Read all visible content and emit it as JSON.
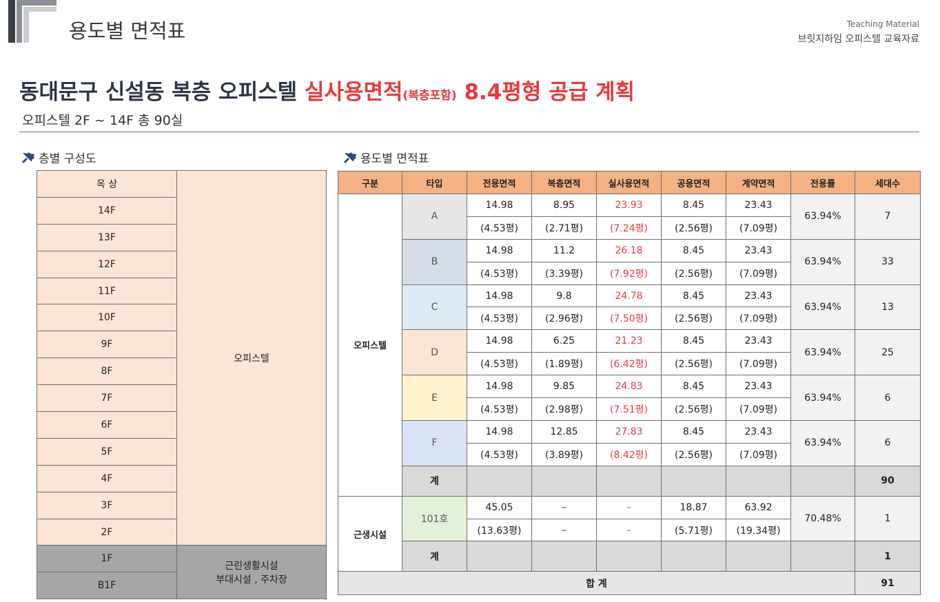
{
  "header": {
    "title": "용도별 면적표",
    "label_en": "Teaching Material",
    "label_ko": "브릿지하임 오피스텔 교육자료"
  },
  "headline": {
    "part1": "동대문구 신설동 복층 오피스텔 ",
    "highlight": "실사용면적",
    "small": "(복층포함)",
    "part2": " 8.4평형 공급 계획"
  },
  "subtitle": "오피스텔 2F ~ 14F 총 90실",
  "floor_section": {
    "title": "층별 구성도",
    "floors": [
      "옥 상",
      "14F",
      "13F",
      "12F",
      "11F",
      "10F",
      "9F",
      "8F",
      "7F",
      "6F",
      "5F",
      "4F",
      "3F",
      "2F",
      "1F",
      "B1F"
    ],
    "upper_use": "오피스텔",
    "lower_use": [
      "근린생활시설",
      "부대시설 , 주차장"
    ]
  },
  "area_section": {
    "title": "용도별 면적표",
    "columns": [
      "구분",
      "타입",
      "전용면적",
      "복층면적",
      "실사용면적",
      "공용면적",
      "계약면적",
      "전용률",
      "세대수"
    ],
    "office": {
      "label": "오피스텔",
      "types": [
        {
          "name": "A",
          "areas": [
            14.98,
            8.95,
            23.93,
            8.45,
            23.43
          ],
          "pyeong": [
            "(4.53평)",
            "(2.71평)",
            "(7.24평)",
            "(2.56평)",
            "(7.09평)"
          ],
          "ratio": "63.94%",
          "units": 7
        },
        {
          "name": "B",
          "areas": [
            14.98,
            11.2,
            26.18,
            8.45,
            23.43
          ],
          "pyeong": [
            "(4.53평)",
            "(3.39평)",
            "(7.92평)",
            "(2.56평)",
            "(7.09평)"
          ],
          "ratio": "63.94%",
          "units": 33
        },
        {
          "name": "C",
          "areas": [
            14.98,
            9.8,
            24.78,
            8.45,
            23.43
          ],
          "pyeong": [
            "(4.53평)",
            "(2.96평)",
            "(7.50평)",
            "(2.56평)",
            "(7.09평)"
          ],
          "ratio": "63.94%",
          "units": 13
        },
        {
          "name": "D",
          "areas": [
            14.98,
            6.25,
            21.23,
            8.45,
            23.43
          ],
          "pyeong": [
            "(4.53평)",
            "(1.89평)",
            "(6.42평)",
            "(2.56평)",
            "(7.09평)"
          ],
          "ratio": "63.94%",
          "units": 25
        },
        {
          "name": "E",
          "areas": [
            14.98,
            9.85,
            24.83,
            8.45,
            23.43
          ],
          "pyeong": [
            "(4.53평)",
            "(2.98평)",
            "(7.51평)",
            "(2.56평)",
            "(7.09평)"
          ],
          "ratio": "63.94%",
          "units": 6
        },
        {
          "name": "F",
          "areas": [
            14.98,
            12.85,
            27.83,
            8.45,
            23.43
          ],
          "pyeong": [
            "(4.53평)",
            "(3.89평)",
            "(8.42평)",
            "(2.56평)",
            "(7.09평)"
          ],
          "ratio": "63.94%",
          "units": 6
        }
      ],
      "subtotal_label": "계",
      "subtotal": 90
    },
    "retail": {
      "label": "근생시설",
      "types": [
        {
          "name": "101호",
          "areas": [
            45.05,
            "–",
            "–",
            18.87,
            63.92
          ],
          "pyeong": [
            "(13.63평)",
            "–",
            "–",
            "(5.71평)",
            "(19.34평)"
          ],
          "ratio": "70.48%",
          "units": 1
        }
      ],
      "subtotal_label": "계",
      "subtotal": 1
    },
    "total_label": "합 계",
    "total": 91
  }
}
